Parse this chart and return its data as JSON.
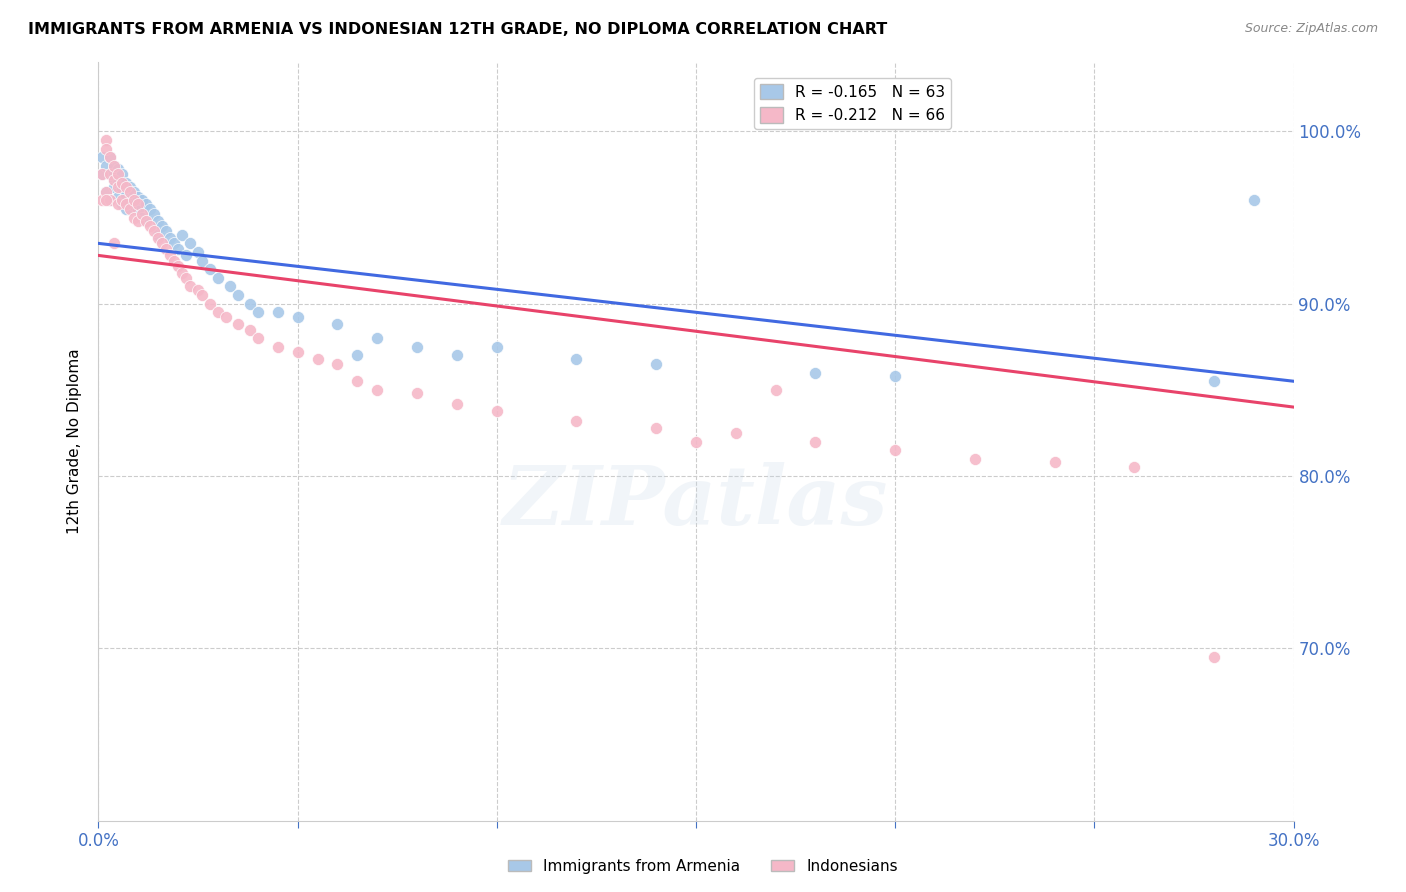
{
  "title": "IMMIGRANTS FROM ARMENIA VS INDONESIAN 12TH GRADE, NO DIPLOMA CORRELATION CHART",
  "source": "Source: ZipAtlas.com",
  "ylabel": "12th Grade, No Diploma",
  "xlim": [
    0.0,
    0.3
  ],
  "ylim": [
    0.6,
    1.04
  ],
  "ytick_vals": [
    0.7,
    0.8,
    0.9,
    1.0
  ],
  "ytick_labels": [
    "70.0%",
    "80.0%",
    "90.0%",
    "100.0%"
  ],
  "xtick_vals": [
    0.0,
    0.05,
    0.1,
    0.15,
    0.2,
    0.25,
    0.3
  ],
  "xtick_labels": [
    "0.0%",
    "",
    "",
    "",
    "",
    "",
    "30.0%"
  ],
  "color_armenia": "#a8c8e8",
  "color_indonesia": "#f5b8c8",
  "line_color_armenia": "#4169e1",
  "line_color_indonesia": "#e8436a",
  "R_armenia": -0.165,
  "N_armenia": 63,
  "R_indonesia": -0.212,
  "N_indonesia": 66,
  "legend_label_armenia": "Immigrants from Armenia",
  "legend_label_indonesia": "Indonesians",
  "watermark": "ZIPatlas",
  "armenia_x": [
    0.001,
    0.001,
    0.002,
    0.002,
    0.003,
    0.003,
    0.003,
    0.004,
    0.004,
    0.004,
    0.005,
    0.005,
    0.005,
    0.006,
    0.006,
    0.006,
    0.007,
    0.007,
    0.007,
    0.008,
    0.008,
    0.009,
    0.009,
    0.01,
    0.01,
    0.011,
    0.011,
    0.012,
    0.012,
    0.013,
    0.014,
    0.015,
    0.015,
    0.016,
    0.017,
    0.018,
    0.019,
    0.02,
    0.021,
    0.022,
    0.023,
    0.025,
    0.026,
    0.028,
    0.03,
    0.033,
    0.035,
    0.038,
    0.04,
    0.045,
    0.05,
    0.06,
    0.065,
    0.07,
    0.08,
    0.09,
    0.1,
    0.12,
    0.14,
    0.18,
    0.2,
    0.28,
    0.29
  ],
  "armenia_y": [
    0.985,
    0.975,
    0.98,
    0.965,
    0.985,
    0.975,
    0.96,
    0.98,
    0.972,
    0.968,
    0.978,
    0.97,
    0.962,
    0.975,
    0.967,
    0.958,
    0.97,
    0.963,
    0.955,
    0.968,
    0.96,
    0.965,
    0.957,
    0.962,
    0.955,
    0.96,
    0.95,
    0.958,
    0.948,
    0.955,
    0.952,
    0.948,
    0.94,
    0.945,
    0.942,
    0.938,
    0.935,
    0.932,
    0.94,
    0.928,
    0.935,
    0.93,
    0.925,
    0.92,
    0.915,
    0.91,
    0.905,
    0.9,
    0.895,
    0.895,
    0.892,
    0.888,
    0.87,
    0.88,
    0.875,
    0.87,
    0.875,
    0.868,
    0.865,
    0.86,
    0.858,
    0.855,
    0.96
  ],
  "indonesia_x": [
    0.001,
    0.001,
    0.002,
    0.002,
    0.002,
    0.003,
    0.003,
    0.003,
    0.004,
    0.004,
    0.005,
    0.005,
    0.005,
    0.006,
    0.006,
    0.007,
    0.007,
    0.008,
    0.008,
    0.009,
    0.009,
    0.01,
    0.01,
    0.011,
    0.012,
    0.013,
    0.014,
    0.015,
    0.016,
    0.017,
    0.018,
    0.019,
    0.02,
    0.021,
    0.022,
    0.023,
    0.025,
    0.026,
    0.028,
    0.03,
    0.032,
    0.035,
    0.038,
    0.04,
    0.045,
    0.05,
    0.055,
    0.06,
    0.065,
    0.07,
    0.08,
    0.09,
    0.1,
    0.12,
    0.14,
    0.16,
    0.18,
    0.2,
    0.22,
    0.24,
    0.26,
    0.28,
    0.15,
    0.17,
    0.002,
    0.004
  ],
  "indonesia_y": [
    0.975,
    0.96,
    0.995,
    0.99,
    0.965,
    0.985,
    0.975,
    0.96,
    0.98,
    0.972,
    0.975,
    0.968,
    0.958,
    0.97,
    0.96,
    0.968,
    0.958,
    0.965,
    0.955,
    0.96,
    0.95,
    0.958,
    0.948,
    0.952,
    0.948,
    0.945,
    0.942,
    0.938,
    0.935,
    0.932,
    0.928,
    0.925,
    0.922,
    0.918,
    0.915,
    0.91,
    0.908,
    0.905,
    0.9,
    0.895,
    0.892,
    0.888,
    0.885,
    0.88,
    0.875,
    0.872,
    0.868,
    0.865,
    0.855,
    0.85,
    0.848,
    0.842,
    0.838,
    0.832,
    0.828,
    0.825,
    0.82,
    0.815,
    0.81,
    0.808,
    0.805,
    0.695,
    0.82,
    0.85,
    0.96,
    0.935
  ]
}
